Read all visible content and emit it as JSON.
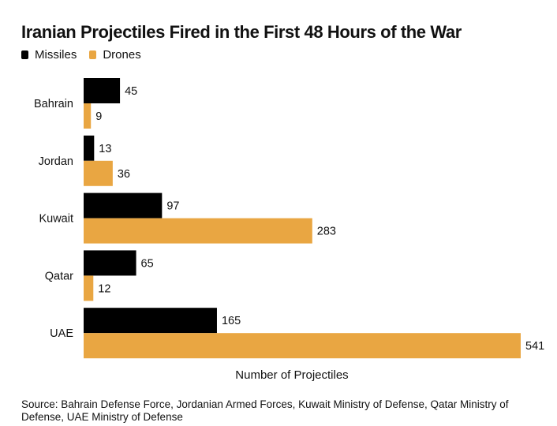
{
  "chart_data": {
    "type": "bar",
    "orientation": "horizontal",
    "title": "Iranian Projectiles Fired in the First 48 Hours of the War",
    "categories": [
      "Bahrain",
      "Jordan",
      "Kuwait",
      "Qatar",
      "UAE"
    ],
    "series": [
      {
        "name": "Missiles",
        "color": "#000000",
        "values": [
          45,
          13,
          97,
          65,
          165
        ]
      },
      {
        "name": "Drones",
        "color": "#E9A642",
        "values": [
          9,
          36,
          283,
          12,
          541
        ]
      }
    ],
    "xlabel": "Number of Projectiles",
    "ylabel": "",
    "xlim": [
      0,
      541
    ],
    "grid": false,
    "legend_position": "top-left",
    "data_labels": true,
    "source": "Source: Bahrain Defense Force, Jordanian Armed Forces, Kuwait Ministry of Defense, Qatar Ministry of Defense, UAE Ministry of Defense"
  }
}
